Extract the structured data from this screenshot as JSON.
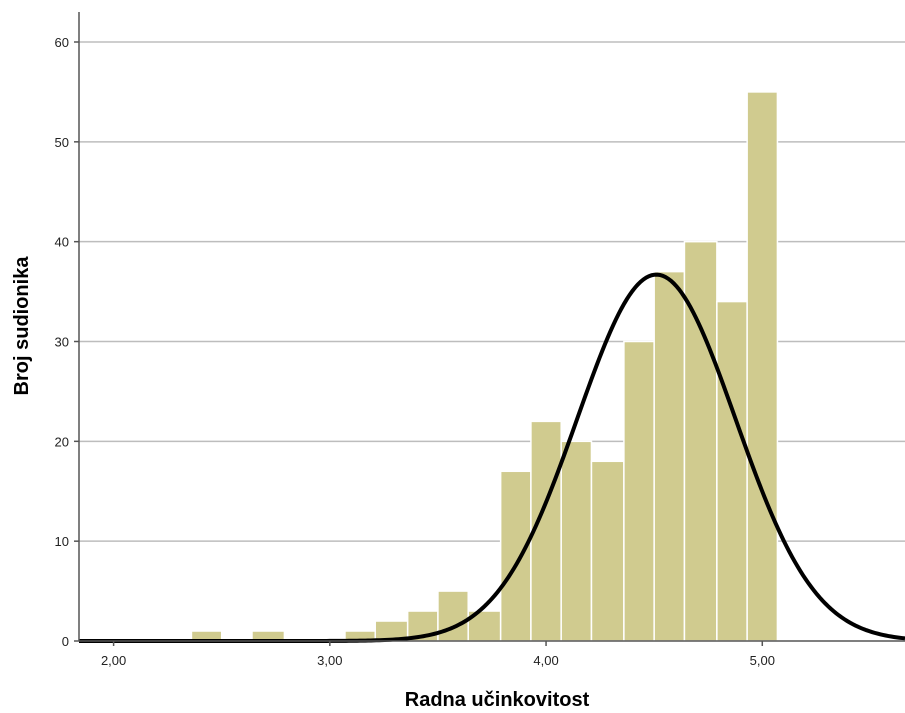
{
  "chart_data": {
    "type": "bar",
    "title": "",
    "xlabel": "Radna učinkovitost",
    "ylabel": "Broj sudionika",
    "xlim": [
      1.84,
      5.66
    ],
    "ylim": [
      0,
      60
    ],
    "x_ticks": [
      {
        "value": 2,
        "label": "2,00"
      },
      {
        "value": 3,
        "label": "3,00"
      },
      {
        "value": 4,
        "label": "4,00"
      },
      {
        "value": 5,
        "label": "5,00"
      }
    ],
    "y_ticks": [
      {
        "value": 0,
        "label": "0"
      },
      {
        "value": 10,
        "label": "10"
      },
      {
        "value": 20,
        "label": "20"
      },
      {
        "value": 30,
        "label": "30"
      },
      {
        "value": 40,
        "label": "40"
      },
      {
        "value": 50,
        "label": "50"
      },
      {
        "value": 60,
        "label": "60"
      }
    ],
    "grid": true,
    "bar_color": "#d0cb8f",
    "curve_color": "#000000",
    "bins": [
      {
        "x0": 2.36,
        "x1": 2.5,
        "count": 1
      },
      {
        "x0": 2.64,
        "x1": 2.79,
        "count": 1
      },
      {
        "x0": 3.07,
        "x1": 3.21,
        "count": 1
      },
      {
        "x0": 3.21,
        "x1": 3.36,
        "count": 2
      },
      {
        "x0": 3.36,
        "x1": 3.5,
        "count": 3
      },
      {
        "x0": 3.5,
        "x1": 3.64,
        "count": 5
      },
      {
        "x0": 3.64,
        "x1": 3.79,
        "count": 3
      },
      {
        "x0": 3.79,
        "x1": 3.93,
        "count": 17
      },
      {
        "x0": 3.93,
        "x1": 4.07,
        "count": 22
      },
      {
        "x0": 4.07,
        "x1": 4.21,
        "count": 20
      },
      {
        "x0": 4.21,
        "x1": 4.36,
        "count": 18
      },
      {
        "x0": 4.36,
        "x1": 4.5,
        "count": 30
      },
      {
        "x0": 4.5,
        "x1": 4.64,
        "count": 37
      },
      {
        "x0": 4.64,
        "x1": 4.79,
        "count": 40
      },
      {
        "x0": 4.79,
        "x1": 4.93,
        "count": 34
      },
      {
        "x0": 4.93,
        "x1": 5.07,
        "count": 55
      }
    ],
    "normal_curve": {
      "mean": 4.51,
      "sd": 0.366,
      "peak": 36.7
    }
  }
}
